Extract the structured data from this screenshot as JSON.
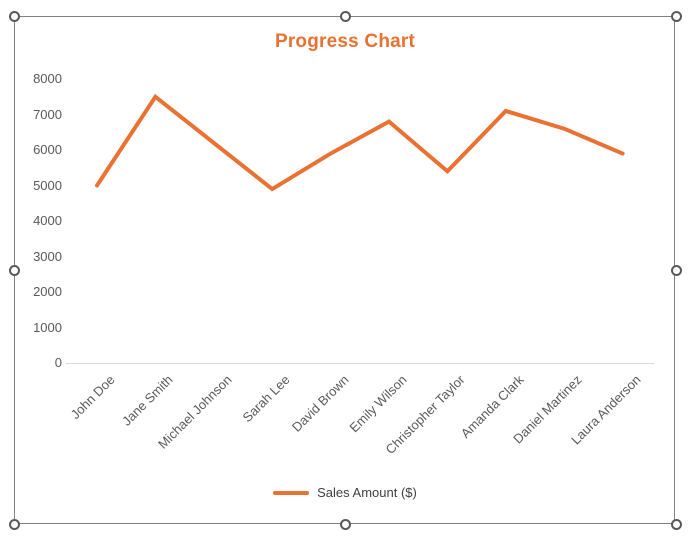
{
  "chart_data": {
    "type": "line",
    "title": "Progress Chart",
    "categories": [
      "John Doe",
      "Jane Smith",
      "Michael Johnson",
      "Sarah Lee",
      "David Brown",
      "Emily Wilson",
      "Christopher Taylor",
      "Amanda Clark",
      "Daniel Martinez",
      "Laura Anderson"
    ],
    "series": [
      {
        "name": "Sales Amount ($)",
        "values": [
          5000,
          7500,
          6200,
          4900,
          5900,
          6800,
          5400,
          7100,
          6600,
          5900
        ]
      }
    ],
    "xlabel": "",
    "ylabel": "",
    "ylim": [
      0,
      8000
    ],
    "ytick_step": 1000,
    "grid": false,
    "legend_position": "bottom",
    "x_label_rotation_deg": 45
  },
  "colors": {
    "accent_orange": "#E97132",
    "axis_line": "#D9D9D9",
    "tick_label": "#595959",
    "legend_text": "#404040",
    "selection_frame": "#808080",
    "handle_stroke": "#595959"
  }
}
